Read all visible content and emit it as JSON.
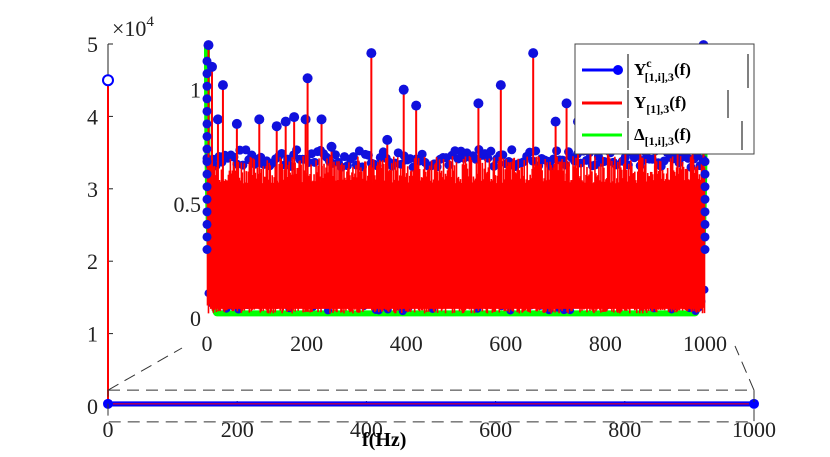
{
  "chart_data": [
    {
      "type": "line",
      "role": "main",
      "xlabel": "f(Hz)",
      "ylabel": "",
      "exponent_label": "×10",
      "exponent_power": "4",
      "xlim": [
        0,
        1000
      ],
      "ylim": [
        0,
        50000
      ],
      "xticks": [
        0,
        200,
        400,
        600,
        800,
        1000
      ],
      "yticks": [
        0,
        10000,
        20000,
        30000,
        40000,
        50000
      ],
      "ytick_labels": [
        "0",
        "1",
        "2",
        "3",
        "4",
        "5"
      ],
      "series": [
        {
          "name": "|Y^c_{[1,i],3}(f)|",
          "color": "#0000ff",
          "spike": {
            "x": 0,
            "y": 45000
          },
          "baseline": 300
        },
        {
          "name": "|Y_{[1],3}(f)|",
          "color": "#ff0000",
          "spike": {
            "x": 0,
            "y": 45000
          },
          "baseline": 300
        },
        {
          "name": "|Δ_{[1,i],3}(f)|",
          "color": "#00ff00",
          "baseline": 300
        }
      ],
      "legend": {
        "position": "top-right",
        "entries": [
          {
            "label": "|Y^c_{[1,i],3}(f)|",
            "color": "#0000ff",
            "marker": "circle"
          },
          {
            "label": "|Y_{[1],3}(f)|",
            "color": "#ff0000",
            "marker": "none"
          },
          {
            "label": "|Δ_{[1,i],3}(f)|",
            "color": "#00ff00",
            "marker": "none"
          }
        ]
      },
      "zoom_box": {
        "xlim": [
          0,
          1000
        ],
        "ylim": [
          -1500,
          1500
        ]
      }
    },
    {
      "type": "line",
      "role": "inset",
      "xlim": [
        0,
        1000
      ],
      "ylim": [
        0,
        1200
      ],
      "xticks": [
        0,
        200,
        400,
        600,
        800,
        1000
      ],
      "yticks": [
        0,
        500,
        1000
      ],
      "ytick_labels": [
        "0",
        "0.5",
        "1"
      ],
      "band": {
        "red_top": 650,
        "blue_top": 700,
        "green_edge": 1200
      },
      "peaks": [
        {
          "x": 3,
          "y": 1195
        },
        {
          "x": 10,
          "y": 1100
        },
        {
          "x": 22,
          "y": 870
        },
        {
          "x": 32,
          "y": 1020
        },
        {
          "x": 60,
          "y": 850
        },
        {
          "x": 105,
          "y": 870
        },
        {
          "x": 140,
          "y": 840
        },
        {
          "x": 158,
          "y": 860
        },
        {
          "x": 175,
          "y": 880
        },
        {
          "x": 198,
          "y": 870
        },
        {
          "x": 202,
          "y": 1050
        },
        {
          "x": 230,
          "y": 870
        },
        {
          "x": 250,
          "y": 750
        },
        {
          "x": 330,
          "y": 1160
        },
        {
          "x": 362,
          "y": 780
        },
        {
          "x": 395,
          "y": 1000
        },
        {
          "x": 420,
          "y": 930
        },
        {
          "x": 545,
          "y": 940
        },
        {
          "x": 590,
          "y": 1020
        },
        {
          "x": 655,
          "y": 1160
        },
        {
          "x": 700,
          "y": 860
        },
        {
          "x": 722,
          "y": 940
        },
        {
          "x": 745,
          "y": 860
        },
        {
          "x": 770,
          "y": 830
        },
        {
          "x": 805,
          "y": 880
        },
        {
          "x": 840,
          "y": 830
        },
        {
          "x": 870,
          "y": 850
        },
        {
          "x": 900,
          "y": 860
        },
        {
          "x": 945,
          "y": 880
        },
        {
          "x": 975,
          "y": 1030
        },
        {
          "x": 997,
          "y": 1195
        }
      ]
    }
  ],
  "legend_labels": {
    "label_a": "Y",
    "label_a_sup": "c",
    "label_a_sub": "[1,i],3",
    "label_a_arg": "(f)",
    "label_b": "Y",
    "label_b_sub": "[1],3",
    "label_b_arg": "(f)",
    "label_c": "Δ",
    "label_c_sub": "[1,i],3",
    "label_c_arg": "(f)"
  }
}
